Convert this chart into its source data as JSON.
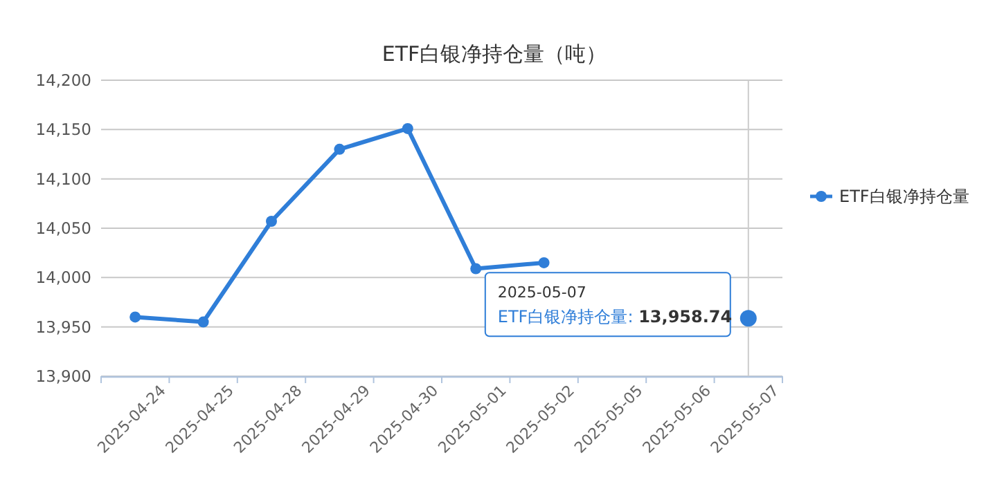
{
  "chart_data": {
    "type": "line",
    "title": "ETF白银净持仓量（吨）",
    "categories": [
      "2025-04-24",
      "2025-04-25",
      "2025-04-28",
      "2025-04-29",
      "2025-04-30",
      "2025-05-01",
      "2025-05-02",
      "2025-05-05",
      "2025-05-06",
      "2025-05-07"
    ],
    "series": [
      {
        "name": "ETF白银净持仓量",
        "color": "#2f7ed8",
        "values": [
          13960,
          13955,
          14057,
          14130,
          14151,
          14009,
          14015,
          null,
          null,
          13958.74
        ]
      }
    ],
    "ylim": [
      13900,
      14200
    ],
    "yticks": [
      {
        "value": 13900,
        "label": "13,900"
      },
      {
        "value": 13950,
        "label": "13,950"
      },
      {
        "value": 14000,
        "label": "14,000"
      },
      {
        "value": 14050,
        "label": "14,050"
      },
      {
        "value": 14100,
        "label": "14,100"
      },
      {
        "value": 14150,
        "label": "14,150"
      },
      {
        "value": 14200,
        "label": "14,200"
      }
    ],
    "grid": "y",
    "legend": "right",
    "marker": "circle",
    "line_style": "solid",
    "ref_lines": [
      {
        "axis": "x",
        "value": "2025-05-07",
        "color": "#cccccc"
      }
    ],
    "annotations": [
      "2025-05-07",
      "ETF白银净持仓量: 13,958.74"
    ]
  }
}
